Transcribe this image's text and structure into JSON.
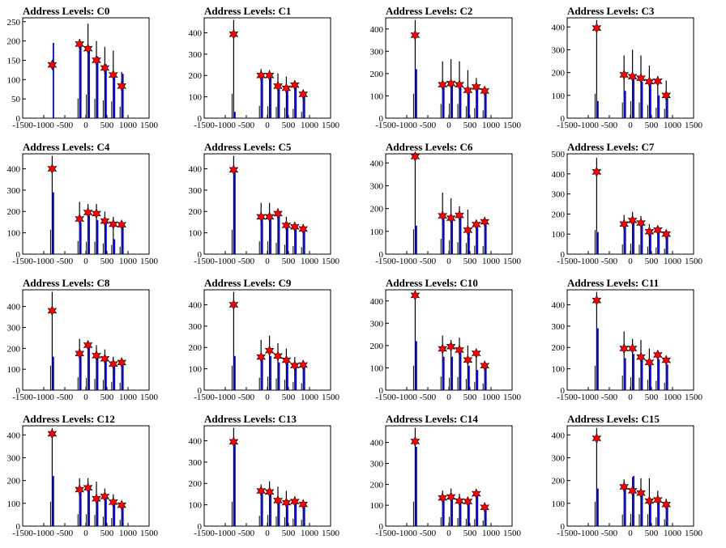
{
  "chart_data": [
    {
      "type": "bar",
      "title": "Address Levels: C0",
      "xlim": [
        -1500,
        1500
      ],
      "ylim": [
        0,
        260
      ],
      "y_ticks": [
        0,
        50,
        100,
        150,
        200,
        250
      ],
      "x_ticks": [
        -1500,
        -1000,
        -500,
        0,
        500,
        1000,
        1500
      ],
      "peaks_x": [
        -800,
        -150,
        50,
        250,
        450,
        650,
        850
      ],
      "black_heights": [
        0,
        205,
        245,
        200,
        185,
        175,
        120
      ],
      "blue_heights": [
        195,
        190,
        175,
        160,
        140,
        110,
        115
      ],
      "star_values": [
        138,
        192,
        180,
        150,
        130,
        112,
        83
      ]
    },
    {
      "type": "bar",
      "title": "Address Levels: C1",
      "xlim": [
        -1500,
        1500
      ],
      "ylim": [
        0,
        470
      ],
      "y_ticks": [
        0,
        100,
        200,
        300,
        400
      ],
      "x_ticks": [
        -1500,
        -1000,
        -500,
        0,
        500,
        1000,
        1500
      ],
      "peaks_x": [
        -800,
        -150,
        50,
        250,
        450,
        650,
        850
      ],
      "black_heights": [
        460,
        230,
        225,
        210,
        195,
        175,
        120
      ],
      "blue_heights": [
        30,
        210,
        210,
        160,
        145,
        150,
        115
      ],
      "star_values": [
        393,
        200,
        200,
        150,
        140,
        155,
        112
      ]
    },
    {
      "type": "bar",
      "title": "Address Levels: C2",
      "xlim": [
        -1500,
        1500
      ],
      "ylim": [
        0,
        450
      ],
      "y_ticks": [
        0,
        100,
        200,
        300,
        400
      ],
      "x_ticks": [
        -1500,
        -1000,
        -500,
        0,
        500,
        1000,
        1500
      ],
      "peaks_x": [
        -800,
        -150,
        50,
        250,
        450,
        650,
        850
      ],
      "black_heights": [
        440,
        255,
        265,
        255,
        215,
        180,
        140
      ],
      "blue_heights": [
        220,
        150,
        145,
        140,
        120,
        135,
        120
      ],
      "star_values": [
        372,
        150,
        155,
        150,
        125,
        140,
        122
      ]
    },
    {
      "type": "bar",
      "title": "Address Levels: C3",
      "xlim": [
        -1500,
        1500
      ],
      "ylim": [
        0,
        440
      ],
      "y_ticks": [
        0,
        100,
        200,
        300,
        400
      ],
      "x_ticks": [
        -1500,
        -1000,
        -500,
        0,
        500,
        1000,
        1500
      ],
      "peaks_x": [
        -800,
        -150,
        50,
        250,
        450,
        650,
        850
      ],
      "black_heights": [
        430,
        275,
        300,
        275,
        230,
        185,
        165
      ],
      "blue_heights": [
        75,
        120,
        170,
        160,
        155,
        100,
        100
      ],
      "star_values": [
        395,
        190,
        182,
        175,
        160,
        162,
        100
      ]
    },
    {
      "type": "bar",
      "title": "Address Levels: C4",
      "xlim": [
        -1500,
        1500
      ],
      "ylim": [
        0,
        470
      ],
      "y_ticks": [
        0,
        100,
        200,
        300,
        400
      ],
      "x_ticks": [
        -1500,
        -1000,
        -500,
        0,
        500,
        1000,
        1500
      ],
      "peaks_x": [
        -800,
        -150,
        50,
        250,
        450,
        650,
        850
      ],
      "black_heights": [
        460,
        245,
        235,
        235,
        200,
        175,
        140
      ],
      "blue_heights": [
        290,
        150,
        190,
        160,
        150,
        70,
        140
      ],
      "star_values": [
        400,
        165,
        195,
        190,
        155,
        140,
        138
      ]
    },
    {
      "type": "bar",
      "title": "Address Levels: C5",
      "xlim": [
        -1500,
        1500
      ],
      "ylim": [
        0,
        470
      ],
      "y_ticks": [
        0,
        100,
        200,
        300,
        400
      ],
      "x_ticks": [
        -1500,
        -1000,
        -500,
        0,
        500,
        1000,
        1500
      ],
      "peaks_x": [
        -800,
        -150,
        50,
        250,
        450,
        650,
        850
      ],
      "black_heights": [
        460,
        240,
        240,
        215,
        175,
        150,
        130
      ],
      "blue_heights": [
        390,
        170,
        180,
        180,
        130,
        115,
        120
      ],
      "star_values": [
        395,
        175,
        175,
        190,
        135,
        128,
        118
      ]
    },
    {
      "type": "bar",
      "title": "Address Levels: C6",
      "xlim": [
        -1500,
        1500
      ],
      "ylim": [
        0,
        440
      ],
      "y_ticks": [
        0,
        100,
        200,
        300,
        400
      ],
      "x_ticks": [
        -1500,
        -1000,
        -500,
        0,
        500,
        1000,
        1500
      ],
      "peaks_x": [
        -800,
        -150,
        50,
        250,
        450,
        650,
        850
      ],
      "black_heights": [
        435,
        270,
        245,
        210,
        195,
        150,
        140
      ],
      "blue_heights": [
        125,
        165,
        150,
        170,
        100,
        130,
        140
      ],
      "star_values": [
        428,
        168,
        158,
        170,
        105,
        130,
        142
      ]
    },
    {
      "type": "bar",
      "title": "Address Levels: C7",
      "xlim": [
        -1500,
        1500
      ],
      "ylim": [
        0,
        500
      ],
      "y_ticks": [
        0,
        100,
        200,
        300,
        400,
        500
      ],
      "x_ticks": [
        -1500,
        -1000,
        -500,
        0,
        500,
        1000,
        1500
      ],
      "peaks_x": [
        -800,
        -150,
        50,
        250,
        450,
        650,
        850
      ],
      "black_heights": [
        480,
        195,
        210,
        190,
        150,
        135,
        110
      ],
      "blue_heights": [
        110,
        150,
        170,
        160,
        110,
        130,
        110
      ],
      "star_values": [
        410,
        150,
        168,
        155,
        112,
        120,
        100
      ]
    },
    {
      "type": "bar",
      "title": "Address Levels: C8",
      "xlim": [
        -1500,
        1500
      ],
      "ylim": [
        0,
        480
      ],
      "y_ticks": [
        0,
        100,
        200,
        300,
        400
      ],
      "x_ticks": [
        -1500,
        -1000,
        -500,
        0,
        500,
        1000,
        1500
      ],
      "peaks_x": [
        -800,
        -150,
        50,
        250,
        450,
        650,
        850
      ],
      "black_heights": [
        470,
        245,
        235,
        215,
        195,
        160,
        140
      ],
      "blue_heights": [
        160,
        180,
        215,
        170,
        150,
        130,
        130
      ],
      "star_values": [
        380,
        175,
        215,
        165,
        150,
        125,
        132
      ]
    },
    {
      "type": "bar",
      "title": "Address Levels: C9",
      "xlim": [
        -1500,
        1500
      ],
      "ylim": [
        0,
        470
      ],
      "y_ticks": [
        0,
        100,
        200,
        300,
        400
      ],
      "x_ticks": [
        -1500,
        -1000,
        -500,
        0,
        500,
        1000,
        1500
      ],
      "peaks_x": [
        -800,
        -150,
        50,
        250,
        450,
        650,
        850
      ],
      "black_heights": [
        460,
        235,
        255,
        220,
        195,
        155,
        130
      ],
      "blue_heights": [
        160,
        150,
        160,
        130,
        140,
        115,
        120
      ],
      "star_values": [
        400,
        155,
        185,
        160,
        140,
        115,
        118
      ]
    },
    {
      "type": "bar",
      "title": "Address Levels: C10",
      "xlim": [
        -1500,
        1500
      ],
      "ylim": [
        0,
        450
      ],
      "y_ticks": [
        0,
        100,
        200,
        300,
        400
      ],
      "x_ticks": [
        -1500,
        -1000,
        -500,
        0,
        500,
        1000,
        1500
      ],
      "peaks_x": [
        -800,
        -150,
        50,
        250,
        450,
        650,
        850
      ],
      "black_heights": [
        440,
        245,
        225,
        235,
        200,
        150,
        120
      ],
      "blue_heights": [
        220,
        150,
        150,
        180,
        110,
        90,
        120
      ],
      "star_values": [
        425,
        185,
        195,
        180,
        135,
        165,
        110
      ]
    },
    {
      "type": "bar",
      "title": "Address Levels: C11",
      "xlim": [
        -1500,
        1500
      ],
      "ylim": [
        0,
        470
      ],
      "y_ticks": [
        0,
        100,
        200,
        300,
        400
      ],
      "x_ticks": [
        -1500,
        -1000,
        -500,
        0,
        500,
        1000,
        1500
      ],
      "peaks_x": [
        -800,
        -150,
        50,
        250,
        450,
        650,
        850
      ],
      "black_heights": [
        460,
        275,
        240,
        235,
        195,
        175,
        140
      ],
      "blue_heights": [
        290,
        150,
        170,
        150,
        140,
        145,
        120
      ],
      "star_values": [
        420,
        195,
        195,
        155,
        130,
        165,
        140
      ]
    },
    {
      "type": "bar",
      "title": "Address Levels: C12",
      "xlim": [
        -1500,
        1500
      ],
      "ylim": [
        0,
        440
      ],
      "y_ticks": [
        0,
        100,
        200,
        300,
        400
      ],
      "x_ticks": [
        -1500,
        -1000,
        -500,
        0,
        500,
        1000,
        1500
      ],
      "peaks_x": [
        -800,
        -150,
        50,
        250,
        450,
        650,
        850
      ],
      "black_heights": [
        430,
        210,
        210,
        195,
        165,
        140,
        110
      ],
      "blue_heights": [
        220,
        160,
        170,
        120,
        130,
        100,
        95
      ],
      "star_values": [
        405,
        160,
        168,
        120,
        130,
        105,
        92
      ]
    },
    {
      "type": "bar",
      "title": "Address Levels: C13",
      "xlim": [
        -1500,
        1500
      ],
      "ylim": [
        0,
        470
      ],
      "y_ticks": [
        0,
        100,
        200,
        300,
        400
      ],
      "x_ticks": [
        -1500,
        -1000,
        -500,
        0,
        500,
        1000,
        1500
      ],
      "peaks_x": [
        -800,
        -150,
        50,
        250,
        450,
        650,
        850
      ],
      "black_heights": [
        460,
        195,
        210,
        185,
        165,
        140,
        120
      ],
      "blue_heights": [
        390,
        160,
        150,
        120,
        115,
        115,
        105
      ],
      "star_values": [
        395,
        165,
        160,
        120,
        110,
        115,
        102
      ]
    },
    {
      "type": "bar",
      "title": "Address Levels: C14",
      "xlim": [
        -1500,
        1500
      ],
      "ylim": [
        0,
        480
      ],
      "y_ticks": [
        0,
        100,
        200,
        300,
        400
      ],
      "x_ticks": [
        -1500,
        -1000,
        -500,
        0,
        500,
        1000,
        1500
      ],
      "peaks_x": [
        -800,
        -150,
        50,
        250,
        450,
        650,
        850
      ],
      "black_heights": [
        470,
        170,
        180,
        155,
        140,
        135,
        110
      ],
      "blue_heights": [
        380,
        140,
        145,
        120,
        120,
        150,
        90
      ],
      "star_values": [
        405,
        135,
        140,
        120,
        118,
        155,
        90
      ]
    },
    {
      "type": "bar",
      "title": "Address Levels: C15",
      "xlim": [
        -1500,
        1500
      ],
      "ylim": [
        0,
        440
      ],
      "y_ticks": [
        0,
        100,
        200,
        300,
        400
      ],
      "x_ticks": [
        -1500,
        -1000,
        -500,
        0,
        500,
        1000,
        1500
      ],
      "peaks_x": [
        -800,
        -150,
        50,
        250,
        450,
        650,
        850
      ],
      "black_heights": [
        430,
        205,
        215,
        210,
        210,
        155,
        120
      ],
      "blue_heights": [
        165,
        170,
        220,
        140,
        105,
        120,
        100
      ],
      "star_values": [
        385,
        172,
        155,
        145,
        110,
        115,
        95
      ]
    }
  ]
}
